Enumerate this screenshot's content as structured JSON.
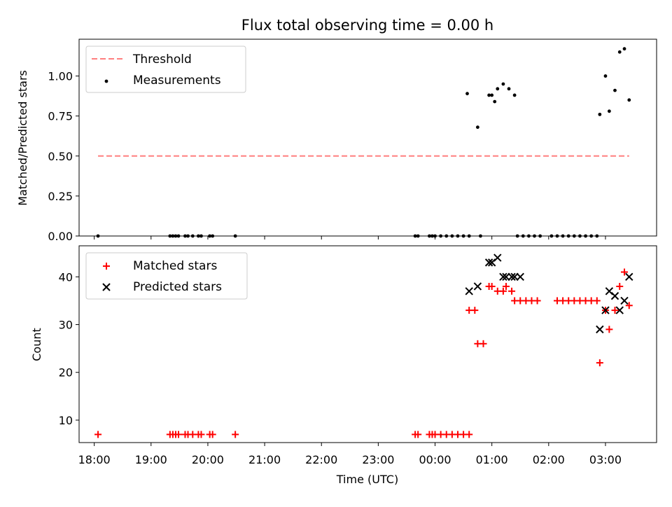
{
  "chart_data": [
    {
      "type": "scatter",
      "title": "Flux total observing time = 0.00 h",
      "xlabel": "",
      "ylabel": "Matched/Predicted stars",
      "ylim": [
        0.0,
        1.23
      ],
      "yticks": [
        "0.00",
        "0.25",
        "0.50",
        "0.75",
        "1.00"
      ],
      "x_range_utc": [
        "17:44",
        "03:54"
      ],
      "legend_position": "upper left",
      "threshold": {
        "name": "Threshold",
        "y": 0.5,
        "x_start": "18:04",
        "x_end": "03:25",
        "color": "#ff7f7f",
        "style": "dashed"
      },
      "series": [
        {
          "name": "Measurements",
          "color": "#000000",
          "marker": "dot",
          "points": [
            {
              "x": "18:04",
              "y": 0.0
            },
            {
              "x": "19:20",
              "y": 0.0
            },
            {
              "x": "19:23",
              "y": 0.0
            },
            {
              "x": "19:26",
              "y": 0.0
            },
            {
              "x": "19:29",
              "y": 0.0
            },
            {
              "x": "19:36",
              "y": 0.0
            },
            {
              "x": "19:39",
              "y": 0.0
            },
            {
              "x": "19:44",
              "y": 0.0
            },
            {
              "x": "19:50",
              "y": 0.0
            },
            {
              "x": "19:53",
              "y": 0.0
            },
            {
              "x": "20:02",
              "y": 0.0
            },
            {
              "x": "20:05",
              "y": 0.0
            },
            {
              "x": "20:29",
              "y": 0.0
            },
            {
              "x": "23:39",
              "y": 0.0
            },
            {
              "x": "23:42",
              "y": 0.0
            },
            {
              "x": "23:54",
              "y": 0.0
            },
            {
              "x": "23:57",
              "y": 0.0
            },
            {
              "x": "00:00",
              "y": 0.0
            },
            {
              "x": "00:06",
              "y": 0.0
            },
            {
              "x": "00:12",
              "y": 0.0
            },
            {
              "x": "00:18",
              "y": 0.0
            },
            {
              "x": "00:24",
              "y": 0.0
            },
            {
              "x": "00:30",
              "y": 0.0
            },
            {
              "x": "00:36",
              "y": 0.0
            },
            {
              "x": "00:34",
              "y": 0.89
            },
            {
              "x": "00:45",
              "y": 0.68
            },
            {
              "x": "00:48",
              "y": 0.0
            },
            {
              "x": "00:57",
              "y": 0.88
            },
            {
              "x": "01:00",
              "y": 0.88
            },
            {
              "x": "01:03",
              "y": 0.84
            },
            {
              "x": "01:06",
              "y": 0.92
            },
            {
              "x": "01:12",
              "y": 0.95
            },
            {
              "x": "01:18",
              "y": 0.92
            },
            {
              "x": "01:24",
              "y": 0.88
            },
            {
              "x": "01:27",
              "y": 0.0
            },
            {
              "x": "01:33",
              "y": 0.0
            },
            {
              "x": "01:39",
              "y": 0.0
            },
            {
              "x": "01:45",
              "y": 0.0
            },
            {
              "x": "01:51",
              "y": 0.0
            },
            {
              "x": "02:03",
              "y": 0.0
            },
            {
              "x": "02:09",
              "y": 0.0
            },
            {
              "x": "02:15",
              "y": 0.0
            },
            {
              "x": "02:21",
              "y": 0.0
            },
            {
              "x": "02:27",
              "y": 0.0
            },
            {
              "x": "02:33",
              "y": 0.0
            },
            {
              "x": "02:39",
              "y": 0.0
            },
            {
              "x": "02:45",
              "y": 0.0
            },
            {
              "x": "02:51",
              "y": 0.0
            },
            {
              "x": "02:54",
              "y": 0.76
            },
            {
              "x": "03:00",
              "y": 1.0
            },
            {
              "x": "03:04",
              "y": 0.78
            },
            {
              "x": "03:10",
              "y": 0.91
            },
            {
              "x": "03:15",
              "y": 1.15
            },
            {
              "x": "03:20",
              "y": 1.17
            },
            {
              "x": "03:25",
              "y": 0.85
            }
          ]
        }
      ]
    },
    {
      "type": "scatter",
      "xlabel": "Time (UTC)",
      "ylabel": "Count",
      "ylim": [
        5.3,
        46.5
      ],
      "yticks": [
        "10",
        "20",
        "30",
        "40"
      ],
      "xticks": [
        "18:00",
        "19:00",
        "20:00",
        "21:00",
        "22:00",
        "23:00",
        "00:00",
        "01:00",
        "02:00",
        "03:00"
      ],
      "x_range_utc": [
        "17:44",
        "03:54"
      ],
      "legend_position": "upper left",
      "series": [
        {
          "name": "Matched stars",
          "color": "#ff0000",
          "marker": "plus",
          "points": [
            {
              "x": "18:04",
              "y": 7
            },
            {
              "x": "19:20",
              "y": 7
            },
            {
              "x": "19:23",
              "y": 7
            },
            {
              "x": "19:26",
              "y": 7
            },
            {
              "x": "19:29",
              "y": 7
            },
            {
              "x": "19:36",
              "y": 7
            },
            {
              "x": "19:39",
              "y": 7
            },
            {
              "x": "19:44",
              "y": 7
            },
            {
              "x": "19:50",
              "y": 7
            },
            {
              "x": "19:53",
              "y": 7
            },
            {
              "x": "20:02",
              "y": 7
            },
            {
              "x": "20:05",
              "y": 7
            },
            {
              "x": "20:29",
              "y": 7
            },
            {
              "x": "23:39",
              "y": 7
            },
            {
              "x": "23:42",
              "y": 7
            },
            {
              "x": "23:54",
              "y": 7
            },
            {
              "x": "23:57",
              "y": 7
            },
            {
              "x": "00:00",
              "y": 7
            },
            {
              "x": "00:06",
              "y": 7
            },
            {
              "x": "00:12",
              "y": 7
            },
            {
              "x": "00:18",
              "y": 7
            },
            {
              "x": "00:24",
              "y": 7
            },
            {
              "x": "00:30",
              "y": 7
            },
            {
              "x": "00:36",
              "y": 7
            },
            {
              "x": "00:36",
              "y": 33
            },
            {
              "x": "00:42",
              "y": 33
            },
            {
              "x": "00:45",
              "y": 26
            },
            {
              "x": "00:51",
              "y": 26
            },
            {
              "x": "00:57",
              "y": 38
            },
            {
              "x": "01:00",
              "y": 38
            },
            {
              "x": "01:06",
              "y": 37
            },
            {
              "x": "01:12",
              "y": 37
            },
            {
              "x": "01:15",
              "y": 38
            },
            {
              "x": "01:21",
              "y": 37
            },
            {
              "x": "01:24",
              "y": 35
            },
            {
              "x": "01:30",
              "y": 35
            },
            {
              "x": "01:36",
              "y": 35
            },
            {
              "x": "01:42",
              "y": 35
            },
            {
              "x": "01:48",
              "y": 35
            },
            {
              "x": "02:09",
              "y": 35
            },
            {
              "x": "02:15",
              "y": 35
            },
            {
              "x": "02:21",
              "y": 35
            },
            {
              "x": "02:27",
              "y": 35
            },
            {
              "x": "02:33",
              "y": 35
            },
            {
              "x": "02:39",
              "y": 35
            },
            {
              "x": "02:45",
              "y": 35
            },
            {
              "x": "02:51",
              "y": 35
            },
            {
              "x": "02:54",
              "y": 22
            },
            {
              "x": "03:00",
              "y": 33
            },
            {
              "x": "03:04",
              "y": 29
            },
            {
              "x": "03:10",
              "y": 33
            },
            {
              "x": "03:15",
              "y": 38
            },
            {
              "x": "03:20",
              "y": 41
            },
            {
              "x": "03:25",
              "y": 34
            }
          ]
        },
        {
          "name": "Predicted stars",
          "color": "#000000",
          "marker": "x",
          "points": [
            {
              "x": "00:36",
              "y": 37
            },
            {
              "x": "00:45",
              "y": 38
            },
            {
              "x": "00:57",
              "y": 43
            },
            {
              "x": "01:00",
              "y": 43
            },
            {
              "x": "01:06",
              "y": 44
            },
            {
              "x": "01:12",
              "y": 40
            },
            {
              "x": "01:15",
              "y": 40
            },
            {
              "x": "01:21",
              "y": 40
            },
            {
              "x": "01:24",
              "y": 40
            },
            {
              "x": "01:30",
              "y": 40
            },
            {
              "x": "02:54",
              "y": 29
            },
            {
              "x": "03:00",
              "y": 33
            },
            {
              "x": "03:04",
              "y": 37
            },
            {
              "x": "03:10",
              "y": 36
            },
            {
              "x": "03:15",
              "y": 33
            },
            {
              "x": "03:20",
              "y": 35
            },
            {
              "x": "03:25",
              "y": 40
            }
          ]
        }
      ]
    }
  ]
}
